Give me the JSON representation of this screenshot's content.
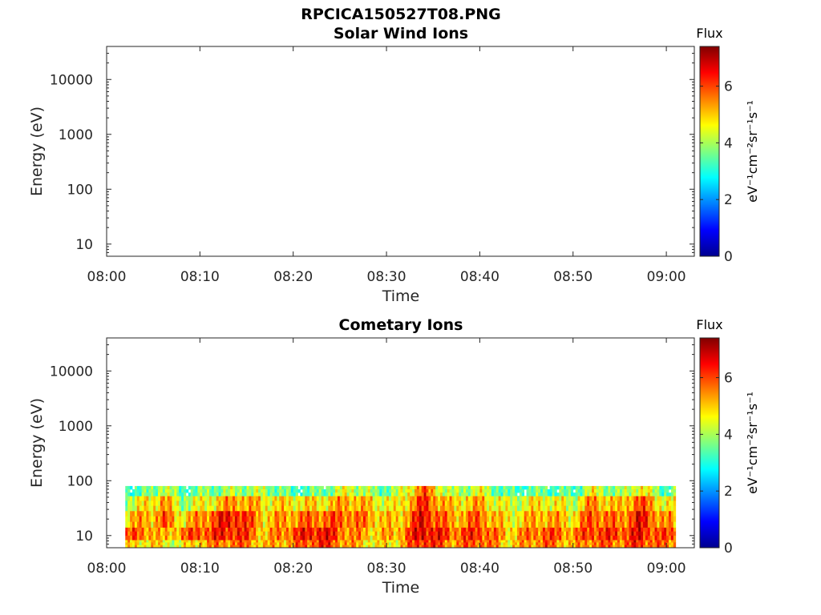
{
  "figure_title": "RPCICA150527T08.PNG",
  "chart_data": [
    {
      "type": "heatmap",
      "title": "Solar Wind Ions",
      "xlabel": "Time",
      "ylabel": "Energy (eV)",
      "x_ticks": [
        "08:00",
        "08:10",
        "08:20",
        "08:30",
        "08:40",
        "08:50",
        "09:00"
      ],
      "x_range": [
        "08:00",
        "09:03"
      ],
      "y_scale": "log",
      "y_ticks": [
        "10",
        "100",
        "1000",
        "10000"
      ],
      "y_range": [
        6,
        40000
      ],
      "colorbar": {
        "label": "Flux",
        "unit_label": "eV⁻¹cm⁻²sr⁻¹s⁻¹",
        "ticks": [
          "0",
          "2",
          "4",
          "6"
        ],
        "range": [
          0,
          7.4
        ],
        "colormap": "jet"
      },
      "data": "empty"
    },
    {
      "type": "heatmap",
      "title": "Cometary Ions",
      "xlabel": "Time",
      "ylabel": "Energy (eV)",
      "x_ticks": [
        "08:00",
        "08:10",
        "08:20",
        "08:30",
        "08:40",
        "08:50",
        "09:00"
      ],
      "x_range": [
        "08:00",
        "09:03"
      ],
      "y_scale": "log",
      "y_ticks": [
        "10",
        "100",
        "1000",
        "10000"
      ],
      "y_range": [
        6,
        40000
      ],
      "colorbar": {
        "label": "Flux",
        "unit_label": "eV⁻¹cm⁻²sr⁻¹s⁻¹",
        "ticks": [
          "0",
          "2",
          "4",
          "6"
        ],
        "range": [
          0,
          7.4
        ],
        "colormap": "jet"
      },
      "data_time_range": [
        "08:02",
        "09:01"
      ],
      "data_energy_range_eV": [
        6,
        80
      ],
      "data": [
        {
          "time": "08:02",
          "flux_by_energy": {
            "7": 4.6,
            "10": 5.8,
            "20": 5.0,
            "40": 4.2,
            "70": 3.2
          }
        },
        {
          "time": "08:05",
          "flux_by_energy": {
            "7": 5.0,
            "10": 5.5,
            "20": 5.3,
            "40": 4.8,
            "70": 3.5
          }
        },
        {
          "time": "08:06",
          "flux_by_energy": {
            "7": 4.5,
            "10": 4.8,
            "20": 5.8,
            "40": 5.5,
            "70": 4.5
          }
        },
        {
          "time": "08:08",
          "flux_by_energy": {
            "7": 4.4,
            "10": 5.6,
            "20": 4.8,
            "40": 4.0,
            "70": 3.2
          }
        },
        {
          "time": "08:10",
          "flux_by_energy": {
            "7": 5.2,
            "10": 6.0,
            "20": 5.4,
            "40": 4.4,
            "70": 3.6
          }
        },
        {
          "time": "08:12",
          "flux_by_energy": {
            "7": 5.5,
            "10": 6.2,
            "20": 6.2,
            "40": 5.0,
            "70": 3.8
          }
        },
        {
          "time": "08:14",
          "flux_by_energy": {
            "7": 5.8,
            "10": 6.4,
            "20": 6.5,
            "40": 5.5,
            "70": 4.0
          }
        },
        {
          "time": "08:17",
          "flux_by_energy": {
            "7": 5.0,
            "10": 5.0,
            "20": 5.0,
            "40": 4.8,
            "70": 4.0
          }
        },
        {
          "time": "08:20",
          "flux_by_energy": {
            "7": 5.5,
            "10": 6.0,
            "20": 5.5,
            "40": 4.8,
            "70": 3.2
          }
        },
        {
          "time": "08:23",
          "flux_by_energy": {
            "7": 6.3,
            "10": 6.6,
            "20": 5.8,
            "40": 4.8,
            "70": 3.5
          }
        },
        {
          "time": "08:26",
          "flux_by_energy": {
            "7": 5.3,
            "10": 5.5,
            "20": 5.8,
            "40": 5.4,
            "70": 4.5
          }
        },
        {
          "time": "08:29",
          "flux_by_energy": {
            "7": 4.6,
            "10": 5.0,
            "20": 5.2,
            "40": 4.7,
            "70": 3.6
          }
        },
        {
          "time": "08:31",
          "flux_by_energy": {
            "7": 4.8,
            "10": 5.2,
            "20": 4.8,
            "40": 4.4,
            "70": 3.8
          }
        },
        {
          "time": "08:34",
          "flux_by_energy": {
            "7": 6.5,
            "10": 6.8,
            "20": 6.6,
            "40": 6.2,
            "70": 5.8
          }
        },
        {
          "time": "08:37",
          "flux_by_energy": {
            "7": 5.4,
            "10": 5.8,
            "20": 5.2,
            "40": 4.8,
            "70": 3.8
          }
        },
        {
          "time": "08:40",
          "flux_by_energy": {
            "7": 6.0,
            "10": 6.2,
            "20": 5.8,
            "40": 5.2,
            "70": 4.4
          }
        },
        {
          "time": "08:43",
          "flux_by_energy": {
            "7": 4.8,
            "10": 5.0,
            "20": 4.6,
            "40": 4.2,
            "70": 3.2
          }
        },
        {
          "time": "08:47",
          "flux_by_energy": {
            "7": 5.8,
            "10": 6.0,
            "20": 5.4,
            "40": 4.8,
            "70": 3.5
          }
        },
        {
          "time": "08:50",
          "flux_by_energy": {
            "7": 5.0,
            "10": 5.4,
            "20": 4.8,
            "40": 4.2,
            "70": 3.2
          }
        },
        {
          "time": "08:52",
          "flux_by_energy": {
            "7": 5.8,
            "10": 6.2,
            "20": 6.0,
            "40": 5.5,
            "70": 4.5
          }
        },
        {
          "time": "08:55",
          "flux_by_energy": {
            "7": 5.6,
            "10": 6.0,
            "20": 5.4,
            "40": 4.8,
            "70": 3.6
          }
        },
        {
          "time": "08:57",
          "flux_by_energy": {
            "7": 6.2,
            "10": 6.4,
            "20": 6.5,
            "40": 6.0,
            "70": 4.8
          }
        },
        {
          "time": "09:00",
          "flux_by_energy": {
            "7": 5.5,
            "10": 5.8,
            "20": 5.2,
            "40": 4.5,
            "70": 3.4
          }
        }
      ]
    }
  ]
}
